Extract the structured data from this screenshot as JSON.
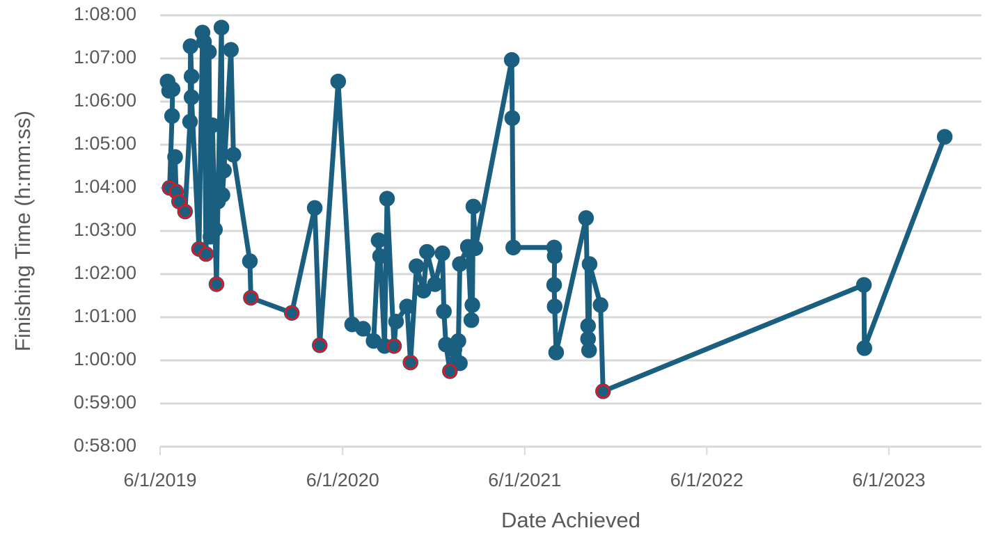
{
  "chart_data": {
    "type": "line",
    "x_label": "Date Achieved",
    "y_label": "Finishing Time (h:mm:ss)",
    "xlim": [
      "6/1/2019",
      "12/1/2023"
    ],
    "xticks": [
      "6/1/2019",
      "6/1/2020",
      "6/1/2021",
      "6/1/2022",
      "6/1/2023"
    ],
    "ylim": [
      3480,
      4080
    ],
    "yticks": [
      {
        "value": 3480,
        "label": "0:58:00"
      },
      {
        "value": 3540,
        "label": "0:59:00"
      },
      {
        "value": 3600,
        "label": "1:00:00"
      },
      {
        "value": 3660,
        "label": "1:01:00"
      },
      {
        "value": 3720,
        "label": "1:02:00"
      },
      {
        "value": 3780,
        "label": "1:03:00"
      },
      {
        "value": 3840,
        "label": "1:04:00"
      },
      {
        "value": 3900,
        "label": "1:05:00"
      },
      {
        "value": 3960,
        "label": "1:06:00"
      },
      {
        "value": 4020,
        "label": "1:07:00"
      },
      {
        "value": 4080,
        "label": "1:08:00"
      }
    ],
    "grid": true,
    "series": [
      {
        "color": "#1a5f80",
        "line": true,
        "edgecolor": "#1a5f80",
        "x": [
          "6/16/2019",
          "6/19/2019",
          "6/26/2019",
          "6/25/2019",
          "6/20/2019",
          "7/1/2019",
          "7/3/2019",
          "7/9/2019",
          "7/21/2019",
          "7/31/2019",
          "8/1/2019",
          "8/3/2019",
          "8/3/2019",
          "8/18/2019",
          "8/25/2019",
          "8/28/2019",
          "9/1/2019",
          "9/7/2019",
          "9/10/2019",
          "9/14/2019",
          "9/19/2019",
          "9/22/2019",
          "9/25/2019",
          "10/2/2019",
          "10/4/2019",
          "10/7/2019",
          "10/21/2019",
          "10/26/2019",
          "11/28/2019",
          "11/30/2019",
          "2/20/2020",
          "4/6/2020",
          "4/16/2020",
          "5/23/2020",
          "6/20/2020",
          "7/12/2020",
          "8/2/2020",
          "8/12/2020",
          "8/15/2020",
          "8/24/2020",
          "8/29/2020",
          "9/12/2020",
          "9/16/2020",
          "10/8/2020",
          "10/15/2020",
          "10/27/2020",
          "11/10/2020",
          "11/17/2020",
          "12/3/2020",
          "12/18/2020",
          "12/21/2020",
          "12/25/2020",
          "1/2/2021",
          "1/11/2021",
          "1/22/2021",
          "1/19/2021",
          "1/22/2021",
          "2/7/2021",
          "2/14/2021",
          "2/16/2021",
          "2/18/2021",
          "2/22/2021",
          "5/6/2021",
          "5/7/2021",
          "5/9/2021",
          "7/30/2021",
          "7/31/2021",
          "7/30/2021",
          "7/31/2021",
          "8/3/2021",
          "10/2/2021",
          "10/6/2021",
          "10/6/2021",
          "10/8/2021",
          "10/9/2021",
          "10/31/2021",
          "11/5/2021",
          "4/12/2023",
          "4/13/2023",
          "9/21/2023"
        ],
        "values": [
          3988,
          3975,
          3977,
          3940,
          3840,
          3883,
          3835,
          3821,
          3807,
          3932,
          4037,
          3995,
          3966,
          3755,
          4056,
          4043,
          3748,
          4029,
          3772,
          3927,
          3782,
          3706,
          3821,
          4063,
          3830,
          3864,
          4032,
          3886,
          3738,
          3687,
          3666,
          3812,
          3621,
          3988,
          3650,
          3644,
          3627,
          3767,
          3745,
          3620,
          3825,
          3620,
          3654,
          3675,
          3597,
          3731,
          3697,
          3751,
          3706,
          3749,
          3668,
          3622,
          3585,
          3615,
          3596,
          3627,
          3734,
          3758,
          3656,
          3677,
          3814,
          3756,
          4018,
          3937,
          3757,
          3757,
          3745,
          3705,
          3675,
          3611,
          3798,
          3648,
          3630,
          3614,
          3734,
          3677,
          3557,
          3705,
          3617,
          3911
        ]
      },
      {
        "color": "#1a5f80",
        "line": false,
        "edgecolor": "#e8131b",
        "x": [
          "6/20/2019",
          "7/3/2019",
          "7/9/2019",
          "7/21/2019",
          "8/18/2019",
          "9/1/2019",
          "9/22/2019",
          "11/30/2019",
          "2/20/2020",
          "4/16/2020",
          "9/12/2020",
          "10/15/2020",
          "1/2/2021",
          "11/5/2021"
        ],
        "values": [
          3840,
          3835,
          3821,
          3807,
          3755,
          3748,
          3706,
          3687,
          3666,
          3621,
          3620,
          3597,
          3585,
          3557
        ]
      }
    ]
  }
}
